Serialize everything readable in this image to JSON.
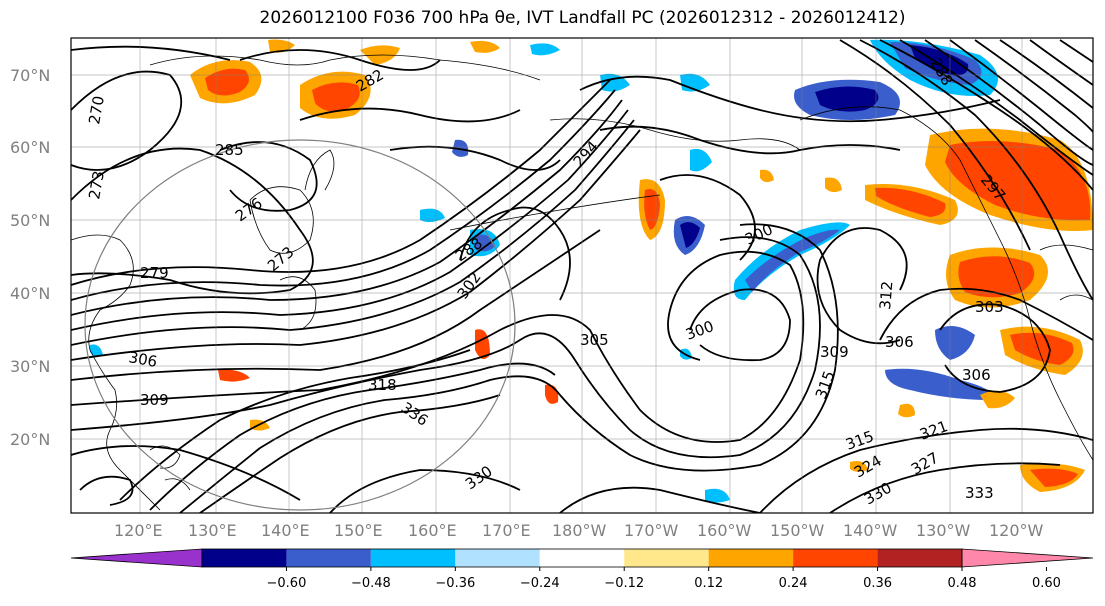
{
  "title": "2026012100 F036 700 hPa θe, IVT Landfall PC (2026012312 - 2026012412)",
  "lat_labels": [
    "70°N",
    "60°N",
    "50°N",
    "40°N",
    "30°N",
    "20°N"
  ],
  "lon_labels": [
    "120°E",
    "130°E",
    "140°E",
    "150°E",
    "160°E",
    "170°E",
    "180°W",
    "170°W",
    "160°W",
    "150°W",
    "140°W",
    "130°W",
    "120°W"
  ],
  "colorbar": {
    "ticks": [
      "−0.60",
      "−0.48",
      "−0.36",
      "−0.24",
      "−0.12",
      "0.12",
      "0.24",
      "0.36",
      "0.48",
      "0.60"
    ],
    "colors": [
      "#9932cc",
      "#00008b",
      "#3a5fcd",
      "#00bfff",
      "#b0e2ff",
      "#ffffff",
      "#ffe88c",
      "#ffa500",
      "#ff4500",
      "#b22222",
      "#ff88aa"
    ]
  },
  "contour_labels": [
    "270",
    "273",
    "276",
    "273",
    "279",
    "282",
    "285",
    "288",
    "294",
    "300",
    "300",
    "302",
    "305",
    "306",
    "306",
    "309",
    "309",
    "312",
    "315",
    "315",
    "318",
    "321",
    "324",
    "327",
    "330",
    "330",
    "333",
    "336",
    "297",
    "303",
    "306",
    "288"
  ]
}
